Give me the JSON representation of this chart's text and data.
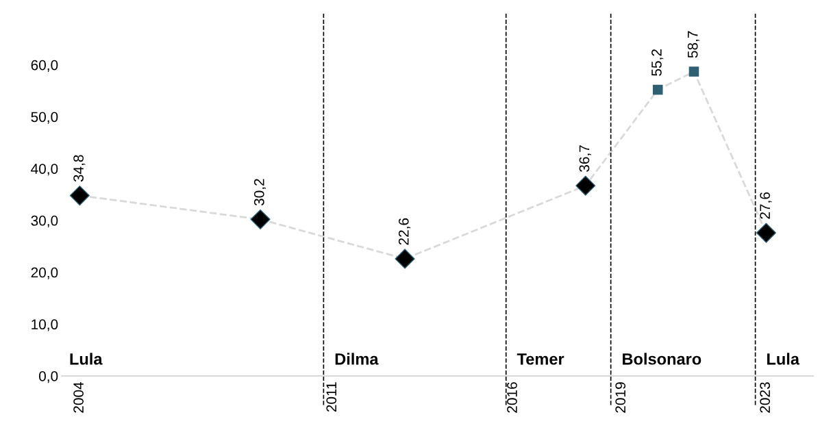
{
  "chart_data": {
    "type": "line",
    "x": [
      2004,
      2009,
      2013,
      2018,
      2020,
      2021,
      2023
    ],
    "series": [
      {
        "color": "#d9d9d9",
        "line_style": "dashed",
        "marker": "none",
        "values": [
          34.8,
          30.2,
          22.6,
          36.7,
          55.2,
          58.7,
          27.6
        ]
      },
      {
        "type": "scatter",
        "color": "#000000",
        "marker": "diamond",
        "values": [
          34.8,
          30.2,
          22.6,
          36.7,
          null,
          null,
          27.6
        ],
        "value_labels": [
          "34,8",
          "30,2",
          "22,6",
          "36,7",
          null,
          null,
          "27,6"
        ]
      },
      {
        "type": "scatter",
        "color": "#2f5f73",
        "marker": "square",
        "values": [
          null,
          null,
          null,
          null,
          55.2,
          58.7,
          null
        ],
        "value_labels": [
          null,
          null,
          null,
          null,
          "55,2",
          "58,7",
          null
        ]
      }
    ],
    "xlim": [
      2003.5,
      2024.3
    ],
    "xticks": [
      2004,
      2011,
      2016,
      2019,
      2023
    ],
    "ylim": [
      0,
      70
    ],
    "yticks": [
      {
        "value": 0,
        "label": "0,0"
      },
      {
        "value": 10,
        "label": "10,0"
      },
      {
        "value": 20,
        "label": "20,0"
      },
      {
        "value": 30,
        "label": "30,0"
      },
      {
        "value": 40,
        "label": "40,0"
      },
      {
        "value": 50,
        "label": "50,0"
      },
      {
        "value": 60,
        "label": "60,0"
      }
    ],
    "ref_lines": [
      {
        "axis": "x",
        "value": 2010.75,
        "label": "Dilma",
        "color": "#000000",
        "line_style": "dashed"
      },
      {
        "axis": "x",
        "value": 2015.8,
        "label": "Temer",
        "color": "#000000",
        "line_style": "dashed"
      },
      {
        "axis": "x",
        "value": 2018.7,
        "label": "Bolsonaro",
        "color": "#000000",
        "line_style": "dashed"
      },
      {
        "axis": "x",
        "value": 2022.7,
        "label": "Lula",
        "color": "#000000",
        "line_style": "dashed"
      }
    ],
    "annotations": [
      "Lula"
    ],
    "grid": false,
    "legend": false
  }
}
